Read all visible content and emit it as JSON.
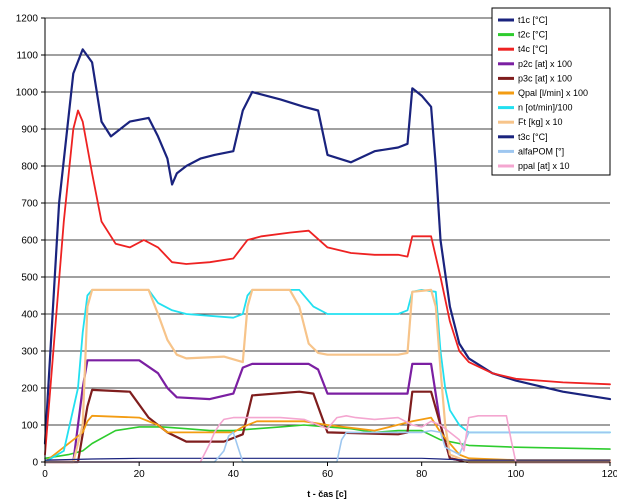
{
  "chart_data": {
    "type": "line",
    "title": "",
    "xlabel": "t - čas [c]",
    "ylabel": "",
    "xlim": [
      0,
      120
    ],
    "ylim": [
      0,
      1200
    ],
    "x_ticks": [
      "0",
      "20",
      "40",
      "60",
      "80",
      "100",
      "120"
    ],
    "y_ticks": [
      "0",
      "100",
      "200",
      "300",
      "400",
      "500",
      "600",
      "700",
      "800",
      "900",
      "1000",
      "1100",
      "1200"
    ],
    "grid": "horizontal",
    "legend_position": "top-right",
    "series": [
      {
        "name": "t1c [°C]",
        "color": "#1a237e",
        "width": 2.2,
        "x": [
          0,
          3,
          6,
          8,
          10,
          12,
          14,
          18,
          22,
          24,
          26,
          27,
          28,
          30,
          33,
          36,
          40,
          42,
          44,
          50,
          55,
          58,
          60,
          65,
          70,
          75,
          77,
          78,
          80,
          82,
          83,
          84,
          86,
          88,
          90,
          95,
          100,
          110,
          120
        ],
        "y": [
          50,
          700,
          1050,
          1115,
          1080,
          920,
          880,
          920,
          930,
          880,
          820,
          750,
          780,
          800,
          820,
          830,
          840,
          950,
          1000,
          980,
          960,
          950,
          830,
          810,
          840,
          850,
          860,
          1010,
          990,
          960,
          800,
          600,
          420,
          320,
          280,
          240,
          220,
          190,
          170
        ]
      },
      {
        "name": "t2c [°C]",
        "color": "#2ecc2e",
        "width": 1.6,
        "x": [
          0,
          5,
          8,
          10,
          15,
          20,
          25,
          30,
          35,
          40,
          45,
          50,
          55,
          60,
          65,
          70,
          75,
          80,
          84,
          90,
          100,
          120
        ],
        "y": [
          10,
          20,
          30,
          50,
          85,
          95,
          95,
          90,
          85,
          85,
          90,
          95,
          100,
          95,
          90,
          80,
          85,
          85,
          60,
          45,
          40,
          35
        ]
      },
      {
        "name": "t4c [°C]",
        "color": "#ee2222",
        "width": 1.8,
        "x": [
          0,
          4,
          6,
          7,
          8,
          10,
          12,
          15,
          18,
          21,
          24,
          27,
          30,
          35,
          40,
          43,
          46,
          52,
          56,
          60,
          65,
          70,
          75,
          77,
          78,
          82,
          84,
          86,
          88,
          90,
          95,
          100,
          110,
          120
        ],
        "y": [
          20,
          650,
          900,
          950,
          920,
          780,
          650,
          590,
          580,
          600,
          580,
          540,
          535,
          540,
          550,
          600,
          610,
          620,
          625,
          580,
          565,
          560,
          560,
          555,
          610,
          610,
          500,
          380,
          300,
          270,
          240,
          225,
          215,
          210
        ]
      },
      {
        "name": "p2c [at] x 100",
        "color": "#7b1fa2",
        "width": 2.2,
        "x": [
          0,
          6,
          8,
          9,
          20,
          24,
          26,
          28,
          35,
          40,
          42,
          44,
          56,
          58,
          60,
          70,
          77,
          78,
          82,
          84,
          86,
          90,
          100,
          120
        ],
        "y": [
          0,
          0,
          200,
          275,
          275,
          240,
          200,
          175,
          170,
          185,
          255,
          265,
          265,
          250,
          185,
          185,
          185,
          265,
          265,
          100,
          10,
          0,
          0,
          0
        ]
      },
      {
        "name": "p3c [at] x 100",
        "color": "#7f1d1d",
        "width": 2.2,
        "x": [
          0,
          7,
          9,
          10,
          18,
          22,
          26,
          30,
          38,
          42,
          44,
          54,
          57,
          60,
          75,
          77,
          78,
          82,
          84,
          86,
          90,
          100,
          120
        ],
        "y": [
          0,
          0,
          150,
          195,
          190,
          120,
          80,
          55,
          55,
          75,
          180,
          190,
          185,
          80,
          75,
          80,
          190,
          190,
          100,
          10,
          0,
          0,
          0
        ]
      },
      {
        "name": "Qpal [l/min] x 100",
        "color": "#f39c12",
        "width": 1.8,
        "x": [
          0,
          3,
          6,
          8,
          9,
          10,
          20,
          24,
          26,
          40,
          42,
          45,
          55,
          60,
          70,
          78,
          82,
          84,
          88,
          90,
          100,
          110,
          120
        ],
        "y": [
          0,
          30,
          60,
          80,
          110,
          125,
          120,
          100,
          80,
          80,
          95,
          110,
          110,
          100,
          85,
          110,
          120,
          80,
          20,
          10,
          5,
          5,
          5
        ]
      },
      {
        "name": "n [ot/min]/100",
        "color": "#22e0f0",
        "width": 1.8,
        "x": [
          0,
          4,
          7,
          8,
          9,
          10,
          22,
          24,
          27,
          30,
          40,
          42,
          43,
          44,
          54,
          57,
          60,
          75,
          77,
          78,
          80,
          83,
          84,
          85,
          86,
          88,
          90,
          100,
          120
        ],
        "y": [
          0,
          30,
          200,
          350,
          450,
          465,
          465,
          430,
          410,
          400,
          390,
          400,
          450,
          465,
          465,
          420,
          400,
          400,
          410,
          460,
          465,
          460,
          300,
          200,
          140,
          100,
          80,
          80,
          80
        ]
      },
      {
        "name": "Ft [kg] x 10",
        "color": "#f7c48a",
        "width": 2.2,
        "x": [
          0,
          6,
          8,
          9,
          10,
          22,
          24,
          26,
          28,
          30,
          38,
          42,
          43,
          44,
          52,
          54,
          56,
          58,
          60,
          75,
          77,
          78,
          82,
          83,
          84,
          85,
          86,
          90,
          120
        ],
        "y": [
          0,
          0,
          100,
          420,
          465,
          465,
          400,
          330,
          290,
          280,
          285,
          270,
          420,
          465,
          465,
          420,
          320,
          295,
          290,
          290,
          295,
          460,
          465,
          420,
          250,
          100,
          20,
          0,
          0
        ]
      },
      {
        "name": "t3c [°C]",
        "color": "#1a237e",
        "width": 1.2,
        "x": [
          0,
          10,
          20,
          30,
          40,
          50,
          60,
          70,
          80,
          84,
          90,
          100,
          110,
          120
        ],
        "y": [
          5,
          8,
          10,
          10,
          10,
          10,
          10,
          10,
          10,
          8,
          5,
          5,
          5,
          5
        ]
      },
      {
        "name": "alfaPOM [°]",
        "color": "#9ec7f0",
        "width": 1.6,
        "x": [
          0,
          36,
          38,
          39,
          40,
          41,
          42,
          62,
          63,
          64,
          80,
          82,
          84,
          85,
          88,
          90,
          120
        ],
        "y": [
          0,
          0,
          30,
          70,
          80,
          40,
          0,
          0,
          60,
          80,
          80,
          85,
          80,
          40,
          20,
          80,
          80
        ]
      },
      {
        "name": "ppal [at] x 10",
        "color": "#f4a6d0",
        "width": 1.6,
        "x": [
          0,
          33,
          35,
          36,
          37,
          38,
          40,
          45,
          50,
          55,
          58,
          60,
          62,
          64,
          66,
          70,
          75,
          78,
          80,
          82,
          84,
          86,
          88,
          89,
          90,
          92,
          98,
          99,
          100,
          110,
          120
        ],
        "y": [
          0,
          0,
          50,
          80,
          100,
          115,
          120,
          120,
          120,
          115,
          100,
          90,
          120,
          125,
          120,
          115,
          120,
          100,
          95,
          110,
          100,
          80,
          60,
          30,
          120,
          125,
          125,
          60,
          0,
          0,
          0
        ]
      }
    ]
  }
}
